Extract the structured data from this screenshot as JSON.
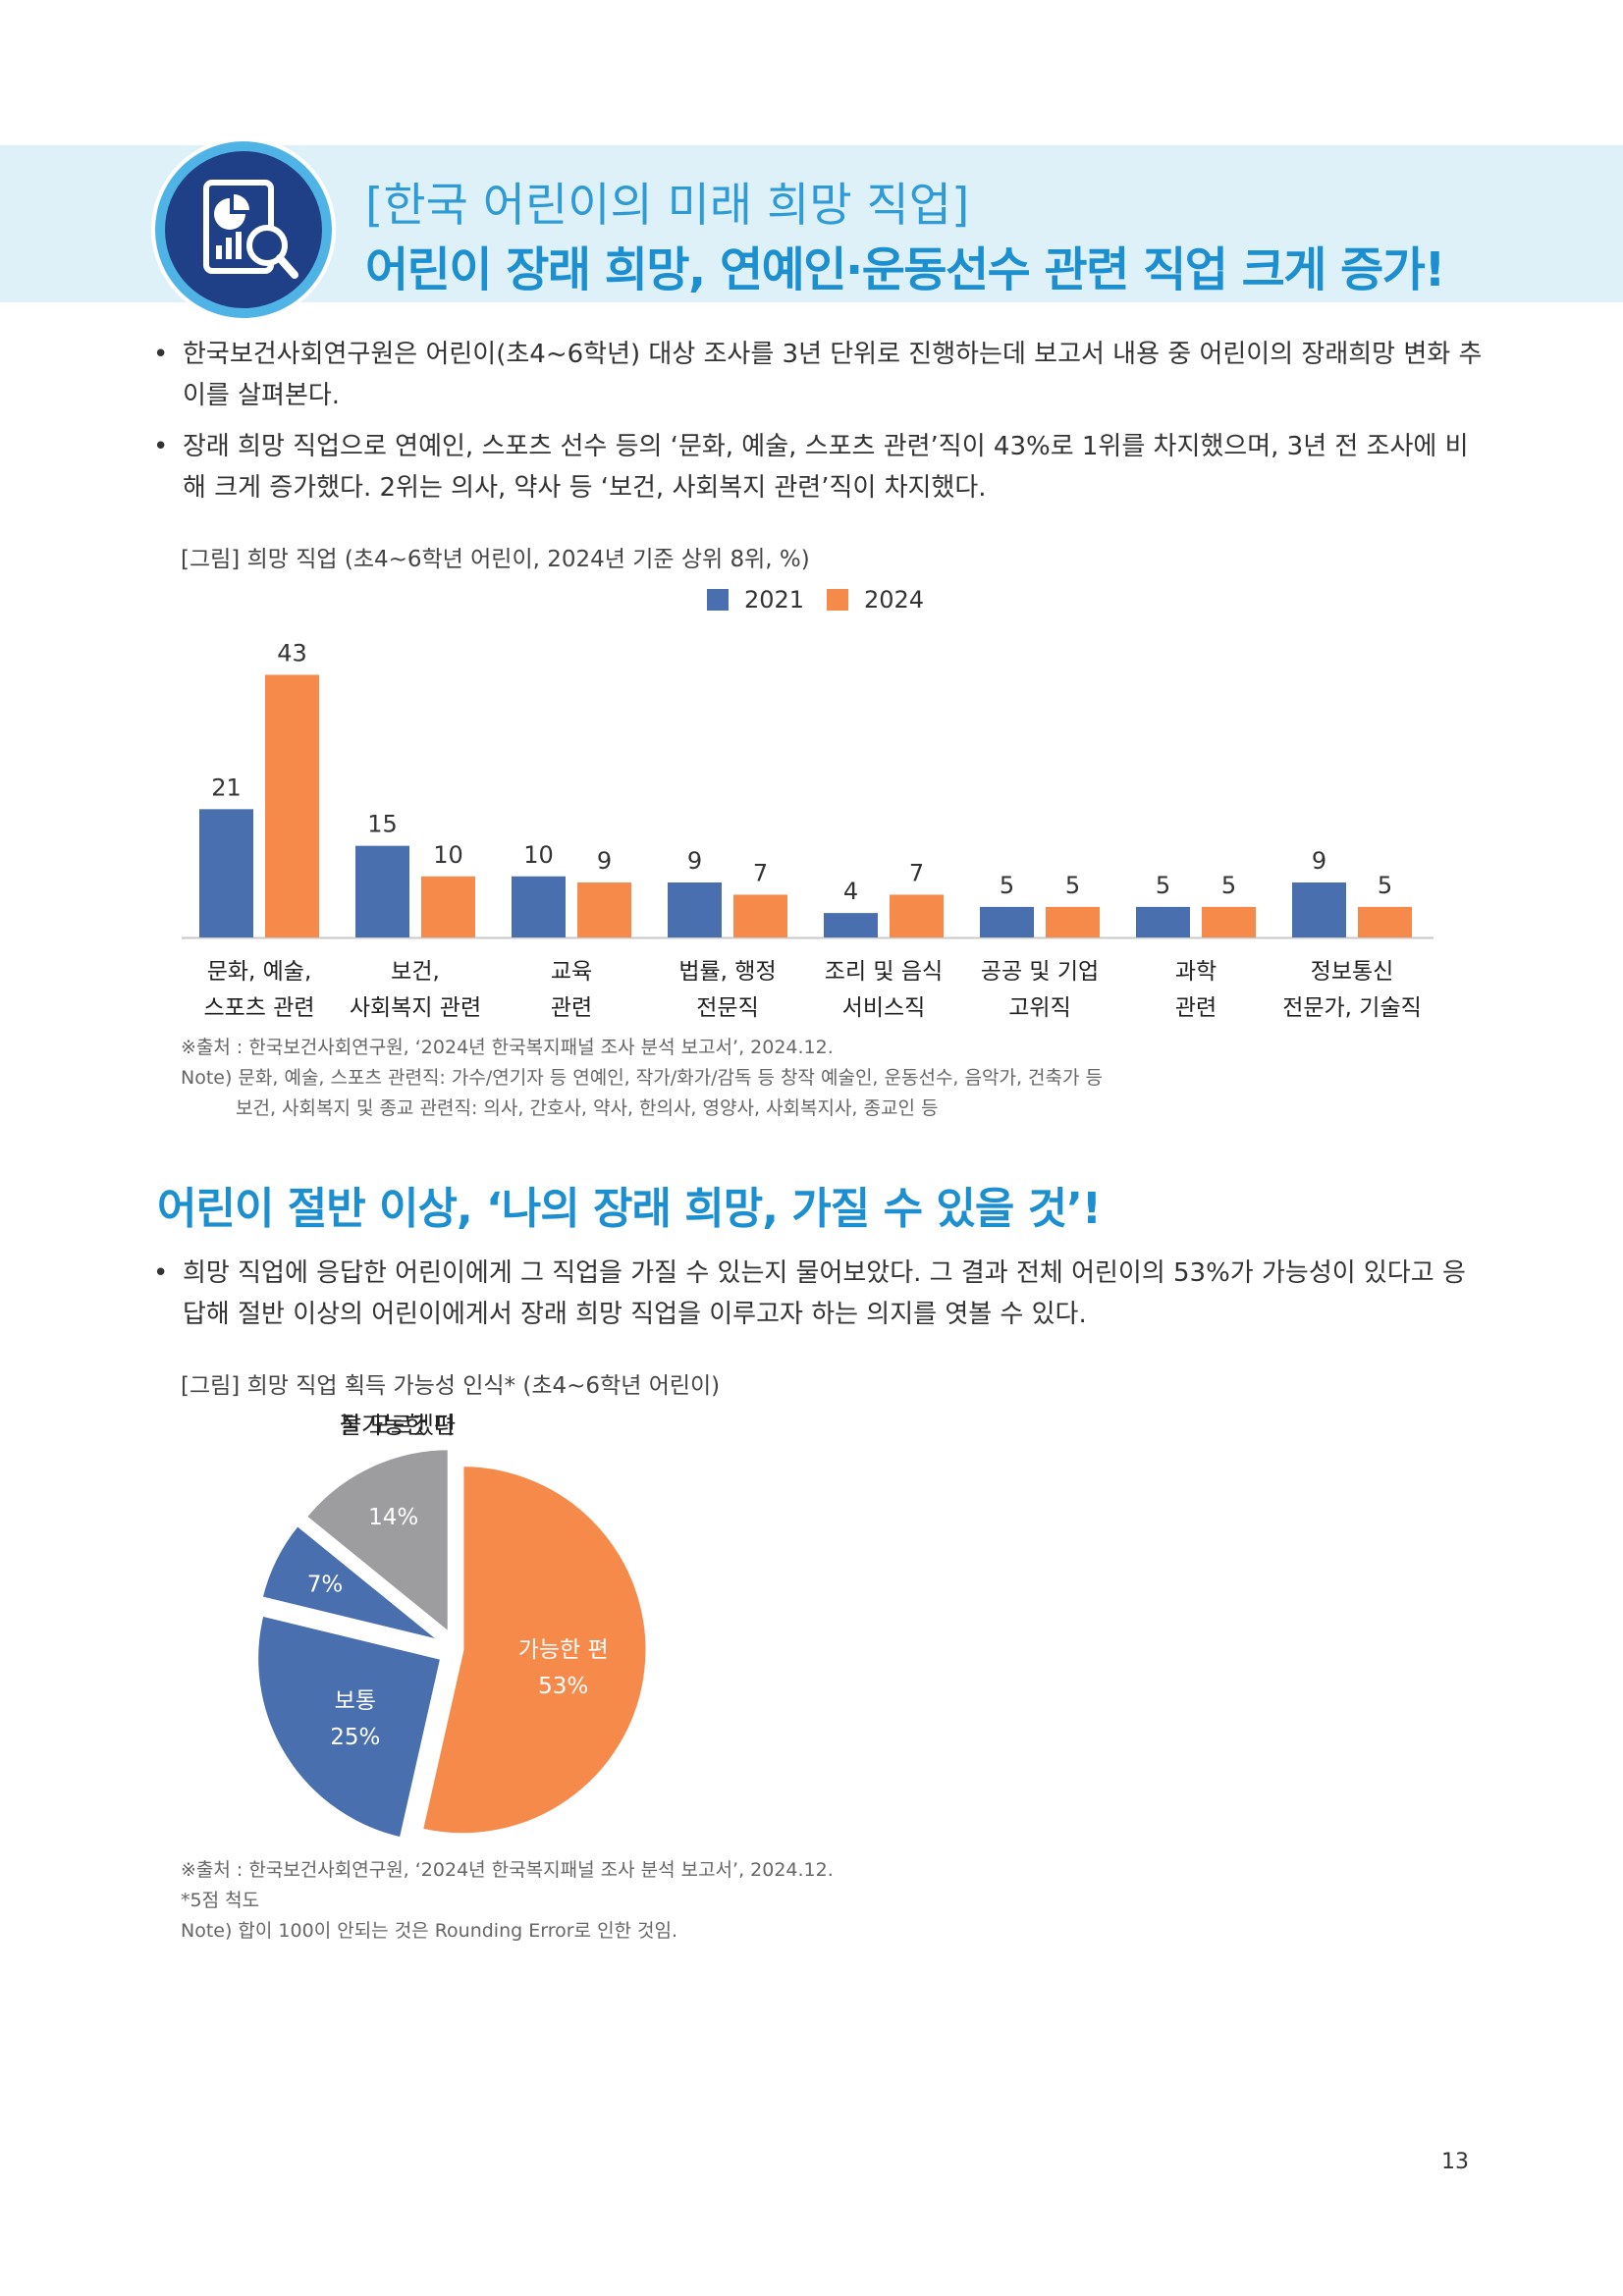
{
  "header": {
    "title_line1": "[한국 어린이의 미래 희망 직업]",
    "title_line2": "어린이 장래 희망, 연예인·운동선수 관련 직업 크게 증가!",
    "icon": "chart-search-icon"
  },
  "section1": {
    "bullets": [
      "한국보건사회연구원은 어린이(초4~6학년) 대상 조사를 3년 단위로 진행하는데 보고서 내용 중 어린이의 장래희망 변화 추이를 살펴본다.",
      "장래 희망 직업으로 연예인, 스포츠 선수 등의 ‘문화, 예술, 스포츠 관련’직이 43%로 1위를 차지했으며, 3년 전 조사에 비해 크게 증가했다. 2위는 의사, 약사 등 ‘보건, 사회복지 관련’직이 차지했다."
    ],
    "figure_caption": "[그림] 희망 직업 (초4~6학년 어린이, 2024년 기준 상위 8위, %)",
    "source_notes": [
      "※출처 : 한국보건사회연구원, ‘2024년 한국복지패널 조사 분석 보고서’, 2024.12.",
      "Note) 문화, 예술, 스포츠 관련직: 가수/연기자 등 연예인, 작가/화가/감독 등 창작 예술인, 운동선수, 음악가, 건축가 등",
      "보건, 사회복지 및 종교 관련직: 의사, 간호사, 약사, 한의사, 영양사, 사회복지사, 종교인 등"
    ]
  },
  "section2": {
    "title": "어린이 절반 이상, ‘나의 장래 희망, 가질 수 있을 것’!",
    "bullets": [
      "희망 직업에 응답한 어린이에게 그 직업을 가질 수 있는지 물어보았다. 그 결과 전체 어린이의 53%가 가능성이 있다고 응답해 절반 이상의 어린이에게서 장래 희망 직업을 이루고자 하는 의지를 엿볼 수 있다."
    ],
    "figure_caption": "[그림] 희망 직업 획득 가능성 인식* (초4~6학년 어린이)",
    "source_notes": [
      "※출처 : 한국보건사회연구원, ‘2024년 한국복지패널 조사 분석 보고서’, 2024.12.",
      "*5점 척도",
      "Note) 합이 100이 안되는 것은 Rounding Error로 인한 것임."
    ]
  },
  "chart_data": [
    {
      "type": "bar",
      "categories": [
        [
          "문화, 예술,",
          "스포츠 관련"
        ],
        [
          "보건,",
          "사회복지 관련"
        ],
        [
          "교육",
          "관련"
        ],
        [
          "법률, 행정",
          "전문직"
        ],
        [
          "조리 및 음식",
          "서비스직"
        ],
        [
          "공공 및 기업",
          "고위직"
        ],
        [
          "과학",
          "관련"
        ],
        [
          "정보통신",
          "전문가, 기술직"
        ]
      ],
      "series": [
        {
          "name": "2021",
          "values": [
            21,
            15,
            10,
            9,
            4,
            5,
            5,
            9
          ],
          "color": "#4a6fae"
        },
        {
          "name": "2024",
          "values": [
            43,
            10,
            9,
            7,
            7,
            5,
            5,
            5
          ],
          "color": "#f58a4b"
        }
      ],
      "ylim": [
        0,
        45
      ],
      "legend": "top-right",
      "grid": false
    },
    {
      "type": "pie",
      "slices": [
        {
          "label": "가능한 편",
          "value": 53,
          "value_label": "53%",
          "color": "#f58a4b",
          "label_position": "inside"
        },
        {
          "label": "보통",
          "value": 25,
          "value_label": "25%",
          "color": "#4a6fae",
          "label_position": "inside"
        },
        {
          "label": "불가능한 편",
          "value": 7,
          "value_label": "7%",
          "color": "#4a6fae",
          "label_position": "outside"
        },
        {
          "label": "잘 모르겠다",
          "value": 14,
          "value_label": "14%",
          "color": "#9d9d9f",
          "label_position": "outside"
        }
      ]
    }
  ],
  "page_number": "13"
}
